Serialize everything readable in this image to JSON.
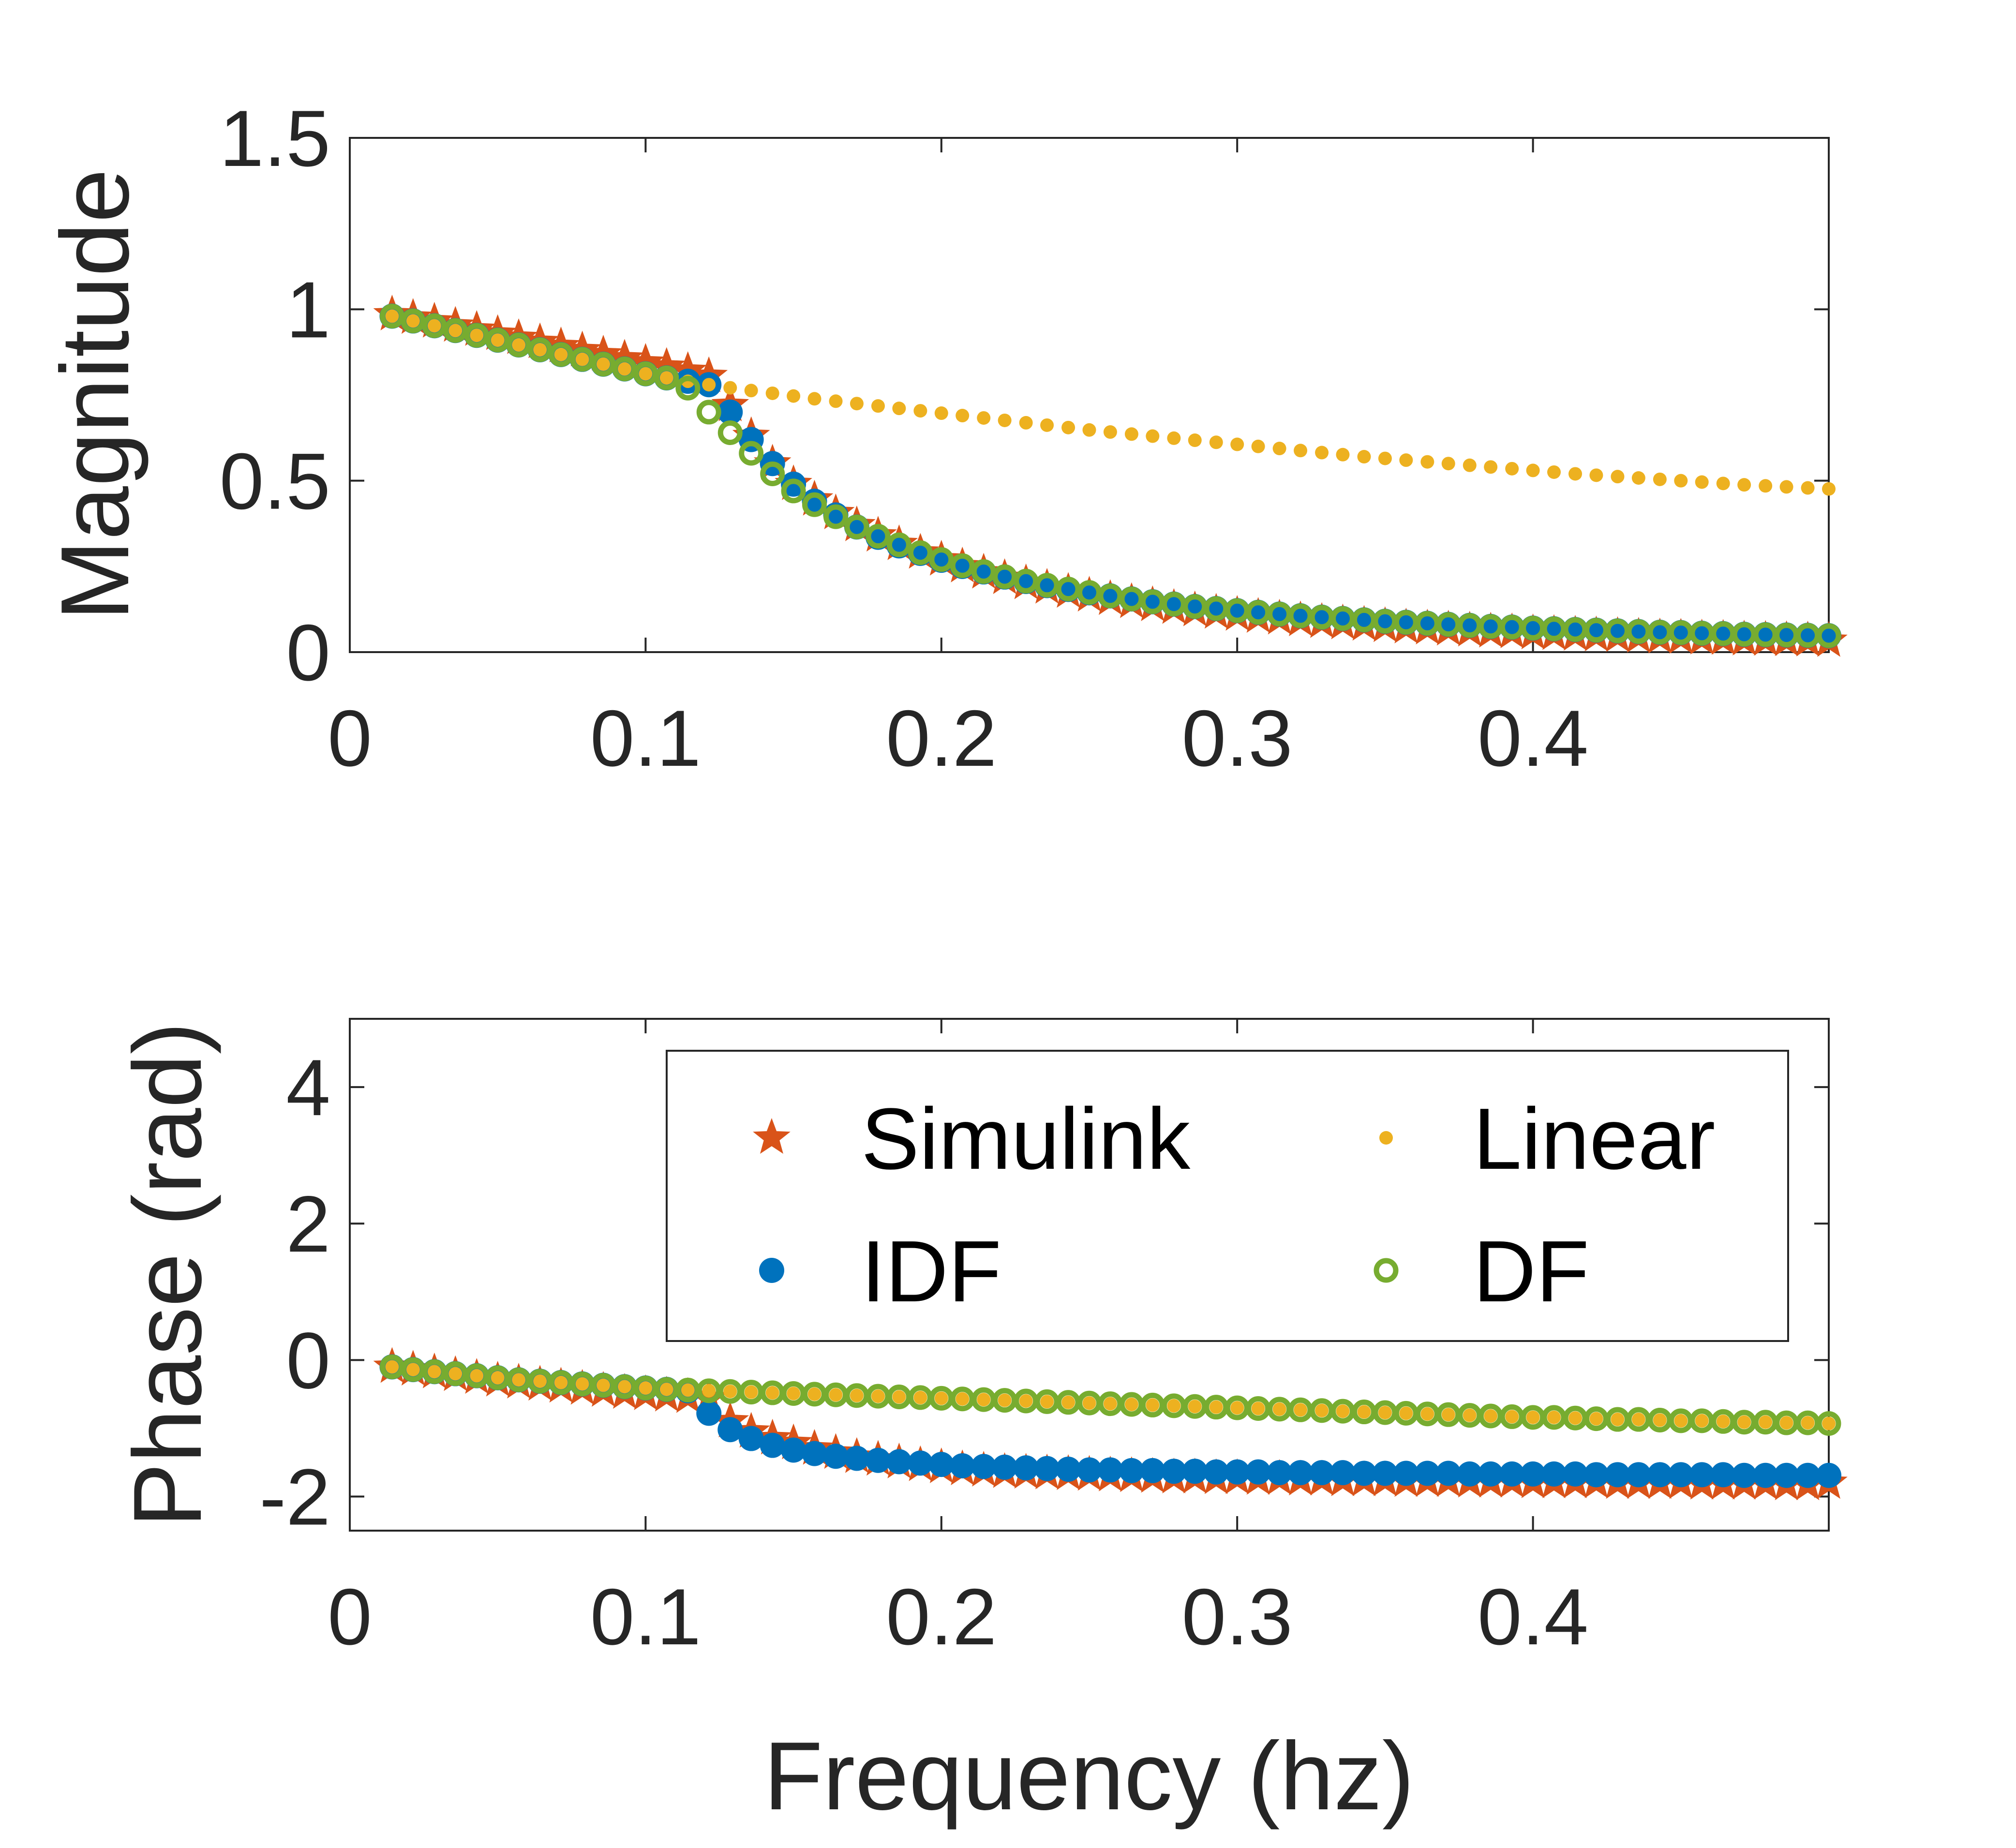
{
  "chart_data": [
    {
      "type": "scatter",
      "panel": "top",
      "title": "",
      "xlabel": "",
      "ylabel": "Magnitude",
      "xlim": [
        0,
        0.5
      ],
      "ylim": [
        0,
        1.5
      ],
      "xticks": [
        "0",
        "0.1",
        "0.2",
        "0.3",
        "0.4"
      ],
      "yticks": [
        "0",
        "0.5",
        "1",
        "1.5"
      ],
      "grid": false,
      "legend": false,
      "x": [
        0.0143,
        0.0214,
        0.0286,
        0.0357,
        0.0429,
        0.05,
        0.0571,
        0.0643,
        0.0714,
        0.0786,
        0.0857,
        0.0929,
        0.1,
        0.1071,
        0.1143,
        0.1214,
        0.1286,
        0.1357,
        0.1429,
        0.15,
        0.1571,
        0.1643,
        0.1714,
        0.1786,
        0.1857,
        0.1929,
        0.2,
        0.2071,
        0.2143,
        0.2214,
        0.2286,
        0.2357,
        0.2429,
        0.25,
        0.2571,
        0.2643,
        0.2714,
        0.2786,
        0.2857,
        0.2929,
        0.3,
        0.3071,
        0.3143,
        0.3214,
        0.3286,
        0.3357,
        0.3429,
        0.35,
        0.3571,
        0.3643,
        0.3714,
        0.3786,
        0.3857,
        0.3929,
        0.4,
        0.4071,
        0.4143,
        0.4214,
        0.4286,
        0.4357,
        0.4429,
        0.45,
        0.4571,
        0.4643,
        0.4714,
        0.4786,
        0.4857,
        0.4929,
        0.5
      ],
      "series": [
        {
          "name": "Simulink",
          "marker": "star",
          "color": "#D95319",
          "values": [
            0.985,
            0.975,
            0.964,
            0.952,
            0.94,
            0.928,
            0.916,
            0.904,
            0.892,
            0.88,
            0.868,
            0.856,
            0.844,
            0.832,
            0.82,
            0.805,
            0.72,
            0.63,
            0.55,
            0.49,
            0.445,
            0.405,
            0.37,
            0.34,
            0.315,
            0.29,
            0.27,
            0.25,
            0.232,
            0.216,
            0.201,
            0.188,
            0.176,
            0.165,
            0.155,
            0.146,
            0.137,
            0.129,
            0.122,
            0.115,
            0.109,
            0.103,
            0.098,
            0.093,
            0.088,
            0.084,
            0.08,
            0.076,
            0.072,
            0.069,
            0.066,
            0.063,
            0.06,
            0.058,
            0.055,
            0.053,
            0.051,
            0.049,
            0.047,
            0.045,
            0.043,
            0.042,
            0.04,
            0.039,
            0.037,
            0.036,
            0.035,
            0.034,
            0.033
          ]
        },
        {
          "name": "IDF",
          "marker": "filled-circle",
          "color": "#0072BD",
          "values": [
            0.98,
            0.966,
            0.952,
            0.938,
            0.924,
            0.91,
            0.896,
            0.882,
            0.868,
            0.854,
            0.84,
            0.826,
            0.812,
            0.8,
            0.79,
            0.78,
            0.7,
            0.62,
            0.55,
            0.49,
            0.44,
            0.4,
            0.365,
            0.335,
            0.31,
            0.288,
            0.268,
            0.25,
            0.234,
            0.219,
            0.206,
            0.194,
            0.183,
            0.173,
            0.164,
            0.155,
            0.147,
            0.14,
            0.133,
            0.127,
            0.121,
            0.116,
            0.111,
            0.106,
            0.102,
            0.098,
            0.094,
            0.09,
            0.087,
            0.084,
            0.081,
            0.078,
            0.075,
            0.073,
            0.07,
            0.068,
            0.066,
            0.064,
            0.062,
            0.06,
            0.058,
            0.057,
            0.055,
            0.054,
            0.052,
            0.051,
            0.05,
            0.049,
            0.048
          ]
        },
        {
          "name": "Linear",
          "marker": "dot",
          "color": "#EDB120",
          "values": [
            0.98,
            0.966,
            0.952,
            0.938,
            0.924,
            0.91,
            0.896,
            0.882,
            0.868,
            0.854,
            0.84,
            0.826,
            0.812,
            0.8,
            0.79,
            0.78,
            0.771,
            0.763,
            0.755,
            0.747,
            0.739,
            0.732,
            0.725,
            0.718,
            0.711,
            0.704,
            0.697,
            0.69,
            0.683,
            0.676,
            0.669,
            0.662,
            0.655,
            0.648,
            0.642,
            0.636,
            0.63,
            0.624,
            0.618,
            0.612,
            0.606,
            0.6,
            0.594,
            0.588,
            0.582,
            0.576,
            0.57,
            0.565,
            0.56,
            0.555,
            0.55,
            0.545,
            0.54,
            0.535,
            0.53,
            0.525,
            0.52,
            0.516,
            0.512,
            0.508,
            0.504,
            0.5,
            0.496,
            0.492,
            0.488,
            0.485,
            0.482,
            0.479,
            0.476
          ]
        },
        {
          "name": "DF",
          "marker": "open-circle",
          "color": "#77AC30",
          "values": [
            0.98,
            0.966,
            0.952,
            0.938,
            0.924,
            0.91,
            0.896,
            0.882,
            0.868,
            0.854,
            0.84,
            0.826,
            0.812,
            0.8,
            0.77,
            0.7,
            0.64,
            0.58,
            0.52,
            0.47,
            0.43,
            0.395,
            0.365,
            0.338,
            0.313,
            0.29,
            0.27,
            0.252,
            0.235,
            0.22,
            0.207,
            0.195,
            0.184,
            0.174,
            0.164,
            0.155,
            0.147,
            0.14,
            0.133,
            0.127,
            0.121,
            0.116,
            0.111,
            0.106,
            0.102,
            0.098,
            0.094,
            0.09,
            0.087,
            0.084,
            0.081,
            0.078,
            0.075,
            0.073,
            0.07,
            0.068,
            0.066,
            0.064,
            0.062,
            0.06,
            0.058,
            0.057,
            0.055,
            0.054,
            0.052,
            0.051,
            0.05,
            0.049,
            0.048
          ]
        }
      ]
    },
    {
      "type": "scatter",
      "panel": "bottom",
      "title": "",
      "xlabel": "Frequency (hz)",
      "ylabel": "Phase (rad)",
      "xlim": [
        0,
        0.5
      ],
      "ylim": [
        -2.5,
        5
      ],
      "xticks": [
        "0",
        "0.1",
        "0.2",
        "0.3",
        "0.4"
      ],
      "yticks": [
        "-2",
        "0",
        "2",
        "4"
      ],
      "grid": false,
      "legend": true,
      "legend_location": "top-right",
      "legend_columns": 2,
      "x": [
        0.0143,
        0.0214,
        0.0286,
        0.0357,
        0.0429,
        0.05,
        0.0571,
        0.0643,
        0.0714,
        0.0786,
        0.0857,
        0.0929,
        0.1,
        0.1071,
        0.1143,
        0.1214,
        0.1286,
        0.1357,
        0.1429,
        0.15,
        0.1571,
        0.1643,
        0.1714,
        0.1786,
        0.1857,
        0.1929,
        0.2,
        0.2071,
        0.2143,
        0.2214,
        0.2286,
        0.2357,
        0.2429,
        0.25,
        0.2571,
        0.2643,
        0.2714,
        0.2786,
        0.2857,
        0.2929,
        0.3,
        0.3071,
        0.3143,
        0.3214,
        0.3286,
        0.3357,
        0.3429,
        0.35,
        0.3571,
        0.3643,
        0.3714,
        0.3786,
        0.3857,
        0.3929,
        0.4,
        0.4071,
        0.4143,
        0.4214,
        0.4286,
        0.4357,
        0.4429,
        0.45,
        0.4571,
        0.4643,
        0.4714,
        0.4786,
        0.4857,
        0.4929,
        0.5
      ],
      "series": [
        {
          "name": "Simulink",
          "marker": "star",
          "color": "#D95319",
          "values": [
            -0.1,
            -0.14,
            -0.18,
            -0.22,
            -0.26,
            -0.3,
            -0.33,
            -0.36,
            -0.39,
            -0.42,
            -0.45,
            -0.48,
            -0.5,
            -0.52,
            -0.54,
            -0.56,
            -0.9,
            -1.05,
            -1.15,
            -1.22,
            -1.3,
            -1.36,
            -1.42,
            -1.46,
            -1.5,
            -1.54,
            -1.57,
            -1.6,
            -1.62,
            -1.64,
            -1.65,
            -1.66,
            -1.67,
            -1.68,
            -1.69,
            -1.7,
            -1.71,
            -1.72,
            -1.72,
            -1.73,
            -1.73,
            -1.74,
            -1.74,
            -1.75,
            -1.75,
            -1.76,
            -1.76,
            -1.76,
            -1.77,
            -1.77,
            -1.77,
            -1.78,
            -1.78,
            -1.78,
            -1.79,
            -1.79,
            -1.79,
            -1.79,
            -1.8,
            -1.8,
            -1.8,
            -1.8,
            -1.81,
            -1.81,
            -1.81,
            -1.81,
            -1.82,
            -1.82,
            -1.8
          ]
        },
        {
          "name": "IDF",
          "marker": "filled-circle",
          "color": "#0072BD",
          "values": [
            -0.1,
            -0.14,
            -0.17,
            -0.2,
            -0.23,
            -0.26,
            -0.29,
            -0.31,
            -0.33,
            -0.35,
            -0.37,
            -0.39,
            -0.41,
            -0.43,
            -0.45,
            -0.78,
            -1.02,
            -1.15,
            -1.25,
            -1.32,
            -1.37,
            -1.41,
            -1.44,
            -1.47,
            -1.49,
            -1.51,
            -1.53,
            -1.55,
            -1.56,
            -1.57,
            -1.58,
            -1.59,
            -1.6,
            -1.61,
            -1.61,
            -1.62,
            -1.62,
            -1.63,
            -1.63,
            -1.64,
            -1.64,
            -1.64,
            -1.65,
            -1.65,
            -1.65,
            -1.65,
            -1.66,
            -1.66,
            -1.66,
            -1.66,
            -1.66,
            -1.67,
            -1.67,
            -1.67,
            -1.67,
            -1.67,
            -1.67,
            -1.68,
            -1.68,
            -1.68,
            -1.68,
            -1.68,
            -1.68,
            -1.68,
            -1.69,
            -1.69,
            -1.69,
            -1.69,
            -1.69
          ]
        },
        {
          "name": "Linear",
          "marker": "dot",
          "color": "#EDB120",
          "values": [
            -0.1,
            -0.14,
            -0.17,
            -0.2,
            -0.23,
            -0.26,
            -0.29,
            -0.31,
            -0.33,
            -0.35,
            -0.37,
            -0.39,
            -0.41,
            -0.43,
            -0.44,
            -0.45,
            -0.46,
            -0.47,
            -0.48,
            -0.49,
            -0.5,
            -0.51,
            -0.52,
            -0.53,
            -0.54,
            -0.55,
            -0.56,
            -0.57,
            -0.58,
            -0.59,
            -0.6,
            -0.61,
            -0.62,
            -0.63,
            -0.64,
            -0.65,
            -0.66,
            -0.67,
            -0.68,
            -0.69,
            -0.7,
            -0.71,
            -0.72,
            -0.73,
            -0.74,
            -0.75,
            -0.76,
            -0.77,
            -0.78,
            -0.79,
            -0.8,
            -0.81,
            -0.82,
            -0.83,
            -0.84,
            -0.84,
            -0.85,
            -0.86,
            -0.87,
            -0.87,
            -0.88,
            -0.89,
            -0.89,
            -0.9,
            -0.91,
            -0.91,
            -0.92,
            -0.92,
            -0.93
          ]
        },
        {
          "name": "DF",
          "marker": "open-circle",
          "color": "#77AC30",
          "values": [
            -0.1,
            -0.14,
            -0.17,
            -0.2,
            -0.23,
            -0.26,
            -0.29,
            -0.31,
            -0.33,
            -0.35,
            -0.37,
            -0.39,
            -0.41,
            -0.43,
            -0.44,
            -0.45,
            -0.46,
            -0.47,
            -0.48,
            -0.49,
            -0.5,
            -0.51,
            -0.52,
            -0.53,
            -0.54,
            -0.55,
            -0.56,
            -0.57,
            -0.58,
            -0.59,
            -0.6,
            -0.61,
            -0.62,
            -0.63,
            -0.64,
            -0.65,
            -0.66,
            -0.67,
            -0.68,
            -0.69,
            -0.7,
            -0.71,
            -0.72,
            -0.73,
            -0.74,
            -0.75,
            -0.76,
            -0.77,
            -0.78,
            -0.79,
            -0.8,
            -0.81,
            -0.82,
            -0.83,
            -0.84,
            -0.84,
            -0.85,
            -0.86,
            -0.87,
            -0.87,
            -0.88,
            -0.89,
            -0.89,
            -0.9,
            -0.91,
            -0.91,
            -0.92,
            -0.92,
            -0.93
          ]
        }
      ]
    }
  ],
  "colors": {
    "axis": "#262626",
    "background": "#ffffff",
    "Simulink": "#D95319",
    "IDF": "#0072BD",
    "Linear": "#EDB120",
    "DF": "#77AC30"
  }
}
